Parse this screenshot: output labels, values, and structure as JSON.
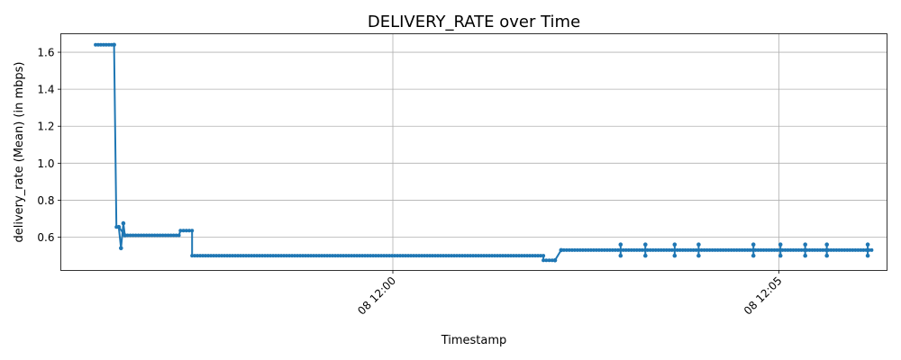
{
  "chart_data": {
    "type": "line",
    "title": "DELIVERY_RATE over Time",
    "xlabel": "Timestamp",
    "ylabel": "delivery_rate (Mean) (in mbps)",
    "x_unit": "minutes relative to 08 12:00",
    "xlim": [
      -4.3,
      6.4
    ],
    "ylim": [
      0.42,
      1.7
    ],
    "grid": true,
    "x_ticks": [
      {
        "value": 0,
        "label": "08 12:00"
      },
      {
        "value": 5,
        "label": "08 12:05"
      }
    ],
    "y_ticks": [
      {
        "value": 0.6,
        "label": "0.6"
      },
      {
        "value": 0.8,
        "label": "0.8"
      },
      {
        "value": 1.0,
        "label": "1.0"
      },
      {
        "value": 1.2,
        "label": "1.2"
      },
      {
        "value": 1.4,
        "label": "1.4"
      },
      {
        "value": 1.6,
        "label": "1.6"
      }
    ],
    "color": "#1f77b4",
    "segments": [
      {
        "x0": -3.85,
        "x1": -3.61,
        "y": 1.64
      },
      {
        "x0": -3.58,
        "x1": -3.55,
        "y": 0.655
      },
      {
        "x0": -3.47,
        "x1": -2.77,
        "y": 0.61
      },
      {
        "x0": -2.75,
        "x1": -2.6,
        "y": 0.635
      },
      {
        "x0": -2.6,
        "x1": 1.95,
        "y": 0.5
      },
      {
        "x0": 1.95,
        "x1": 2.1,
        "y": 0.475
      },
      {
        "x0": 2.18,
        "x1": 6.2,
        "y": 0.53
      }
    ],
    "spikes": [
      {
        "x": -3.61,
        "y": 1.64
      },
      {
        "x": -3.55,
        "y": 0.655
      },
      {
        "x": -3.52,
        "y": 0.54
      },
      {
        "x": -3.49,
        "y": 0.675
      },
      {
        "x": -3.47,
        "y": 0.61
      },
      {
        "x": 2.1,
        "y": 0.475
      },
      {
        "x": 2.18,
        "y": 0.53
      },
      {
        "x": 2.95,
        "y": 0.56
      },
      {
        "x": 2.95,
        "y": 0.5
      },
      {
        "x": 3.27,
        "y": 0.56
      },
      {
        "x": 3.27,
        "y": 0.5
      },
      {
        "x": 3.65,
        "y": 0.56
      },
      {
        "x": 3.65,
        "y": 0.5
      },
      {
        "x": 3.96,
        "y": 0.56
      },
      {
        "x": 3.96,
        "y": 0.5
      },
      {
        "x": 4.67,
        "y": 0.56
      },
      {
        "x": 4.67,
        "y": 0.5
      },
      {
        "x": 5.02,
        "y": 0.56
      },
      {
        "x": 5.02,
        "y": 0.5
      },
      {
        "x": 5.34,
        "y": 0.56
      },
      {
        "x": 5.34,
        "y": 0.5
      },
      {
        "x": 5.62,
        "y": 0.56
      },
      {
        "x": 5.62,
        "y": 0.5
      },
      {
        "x": 6.15,
        "y": 0.56
      },
      {
        "x": 6.15,
        "y": 0.5
      }
    ]
  }
}
